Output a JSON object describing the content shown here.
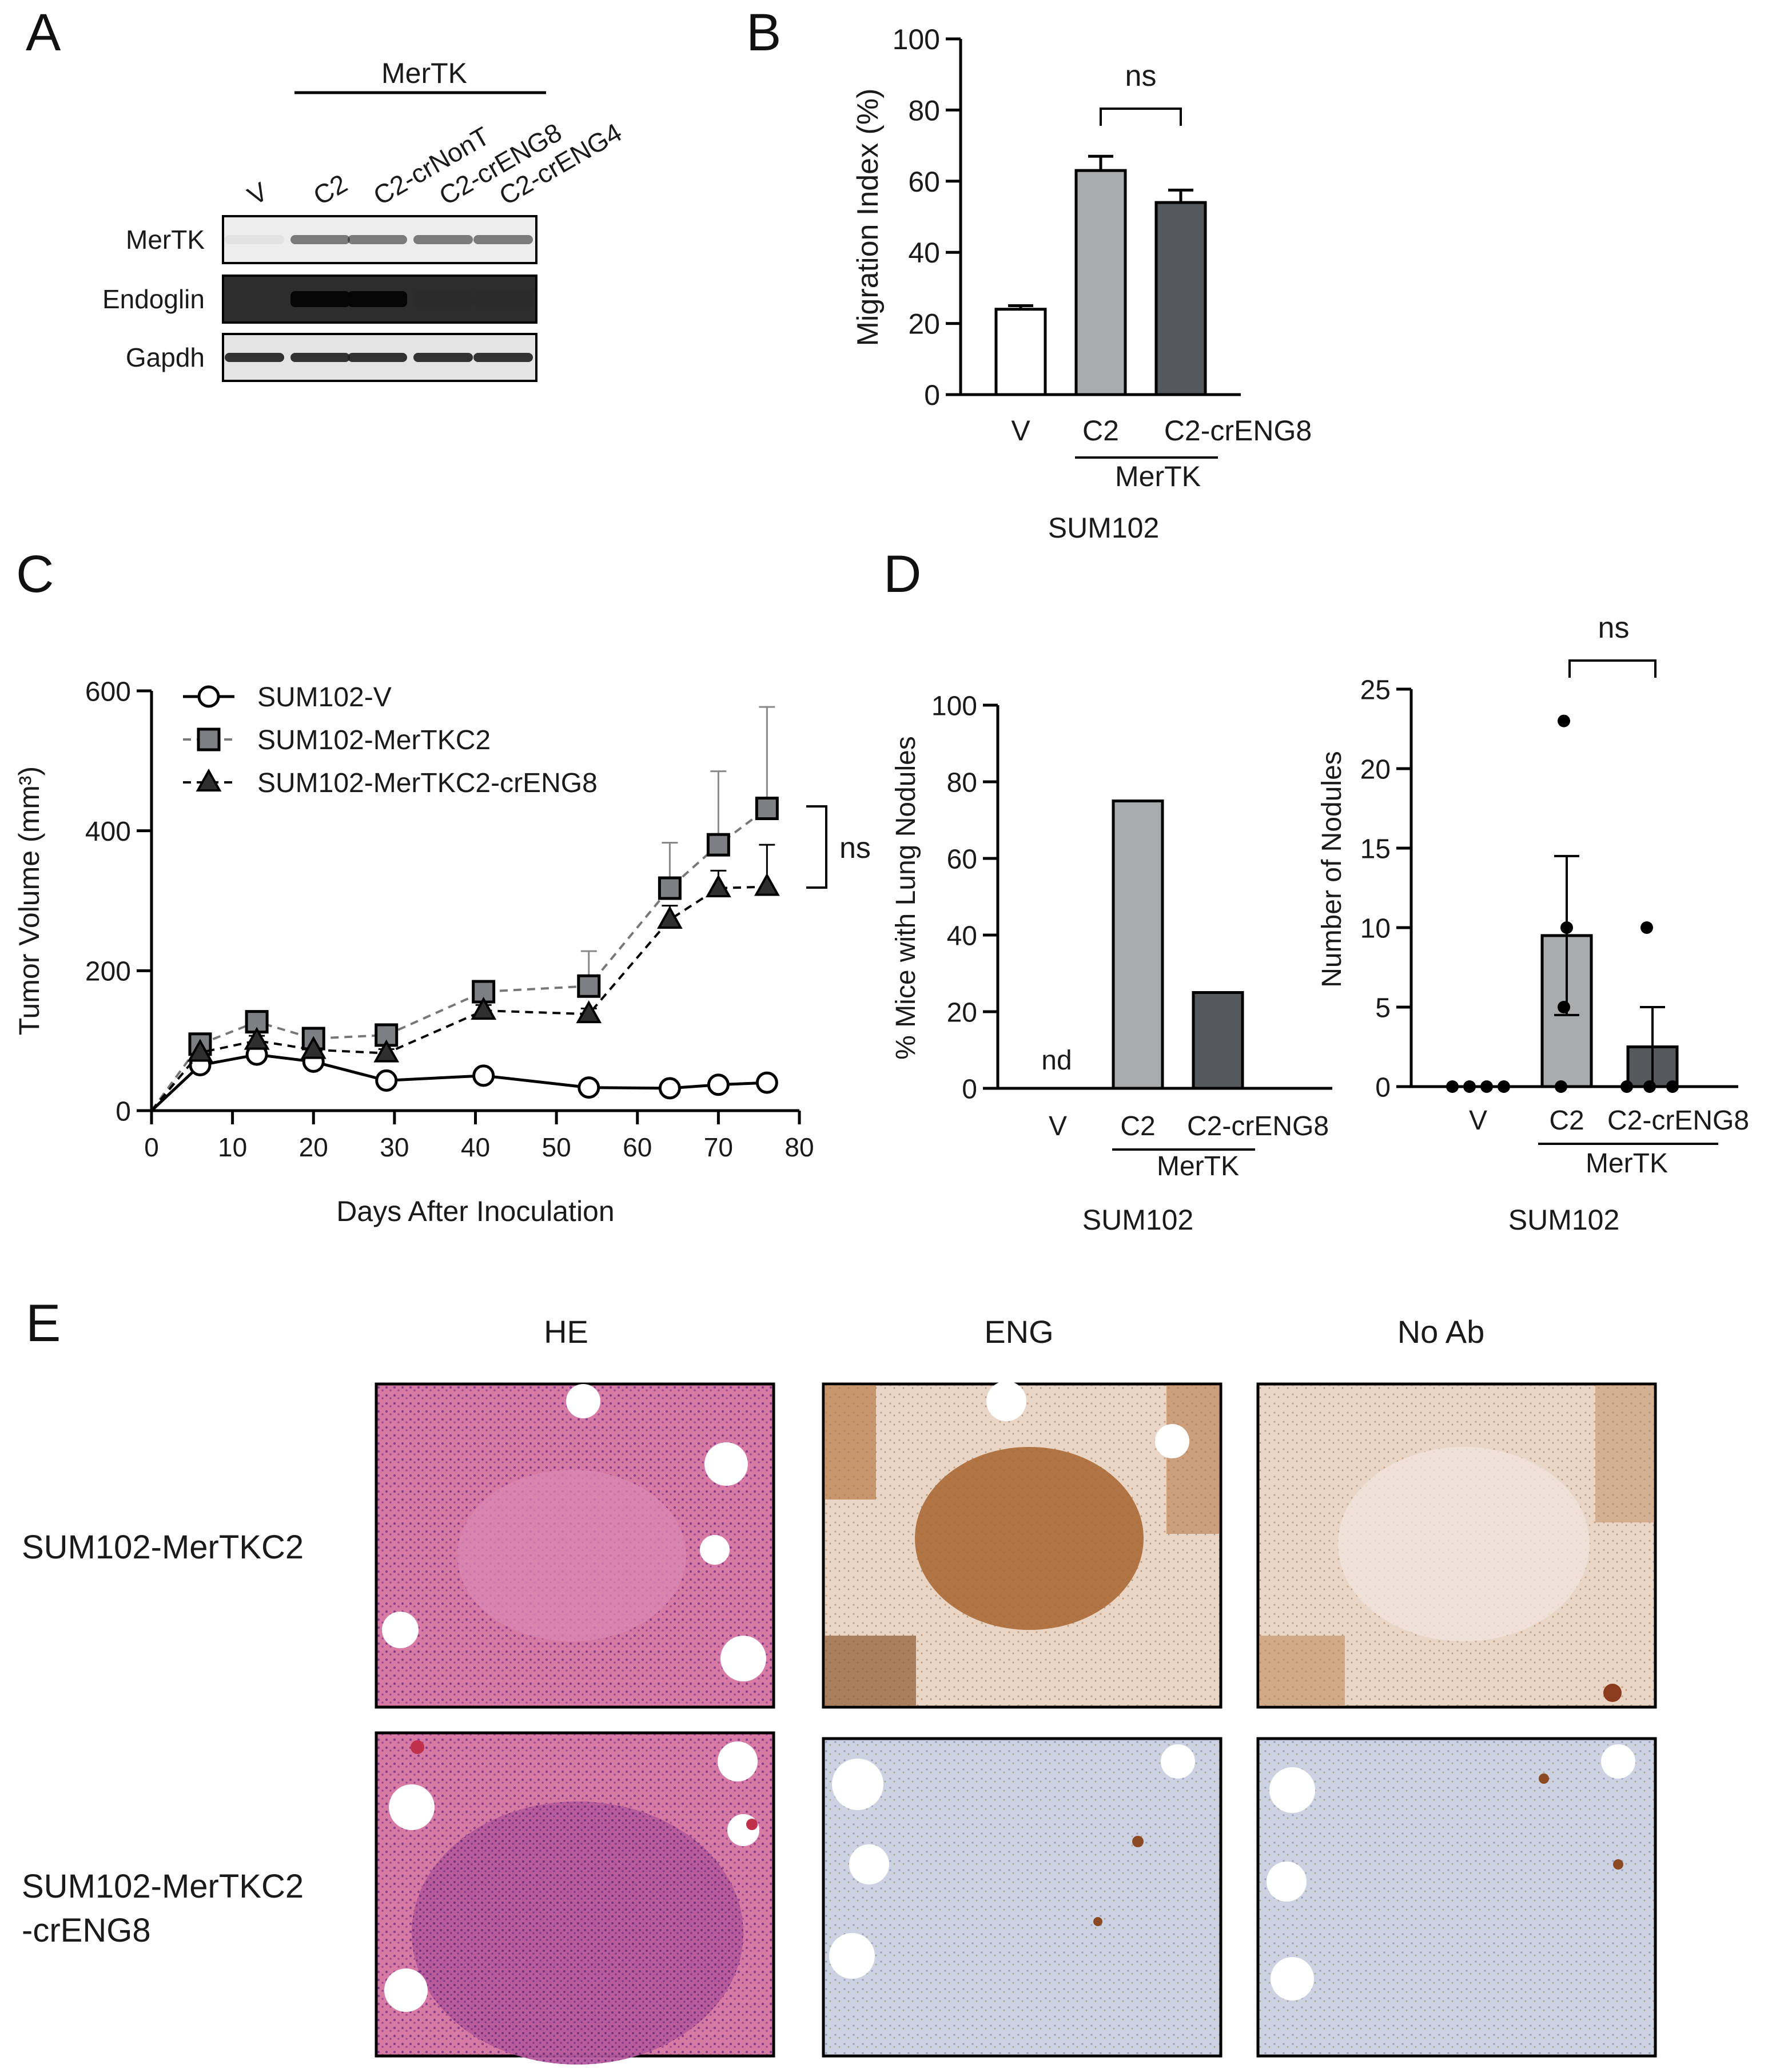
{
  "panel_letters": {
    "a": "A",
    "b": "B",
    "c": "C",
    "d": "D",
    "e": "E"
  },
  "colors": {
    "v": "#ffffff",
    "c2": "#a9abad",
    "crENG8": "#56595c",
    "axis": "#000000"
  },
  "panel_a": {
    "group_label": "MerTK",
    "lanes": [
      "V",
      "C2",
      "C2-crNonT",
      "C2-crENG8",
      "C2-crENG4"
    ],
    "rows": [
      "MerTK",
      "Endoglin",
      "Gapdh"
    ],
    "band_intensity": {
      "MerTK": [
        0.05,
        0.55,
        0.55,
        0.55,
        0.55
      ],
      "Endoglin": [
        0.0,
        1.0,
        1.0,
        0.03,
        0.03
      ],
      "Gapdh": [
        0.9,
        0.9,
        0.9,
        0.9,
        0.9
      ]
    }
  },
  "panel_d": {
    "sum_left": "SUM102",
    "sum_right": "SUM102",
    "mertk_left": "MerTK",
    "mertk_right": "MerTK",
    "nd_label": "nd"
  },
  "panel_e": {
    "columns": [
      "HE",
      "ENG",
      "No Ab"
    ],
    "rows": [
      "SUM102-MerTKC2",
      "SUM102-MerTKC2",
      "-crENG8"
    ]
  },
  "chart_data": [
    {
      "panel": "B",
      "type": "bar",
      "categories": [
        "V",
        "C2",
        "C2-crENG8"
      ],
      "values": [
        24,
        63,
        54
      ],
      "errors": [
        1,
        4,
        3.5
      ],
      "ylabel": "Migration Index (%)",
      "ylim": [
        0,
        100
      ],
      "yticks": [
        0,
        20,
        40,
        60,
        80,
        100
      ],
      "group_label": "MerTK",
      "xlabel": "SUM102",
      "significance": "ns"
    },
    {
      "panel": "C",
      "type": "line",
      "xlabel": "Days After Inoculation",
      "ylabel": "Tumor Volume (mm³)",
      "xlim": [
        0,
        80
      ],
      "ylim": [
        0,
        600
      ],
      "xticks": [
        0,
        10,
        20,
        30,
        40,
        50,
        60,
        70,
        80
      ],
      "yticks": [
        0,
        200,
        400,
        600
      ],
      "legend_position": "top-left",
      "significance": "ns",
      "series": [
        {
          "name": "SUM102-V",
          "marker": "circle",
          "x": [
            0,
            6,
            13,
            20,
            29,
            41,
            54,
            64,
            70,
            76
          ],
          "y": [
            0,
            65,
            80,
            70,
            43,
            50,
            33,
            32,
            37,
            40
          ],
          "err": [
            0,
            5,
            6,
            6,
            4,
            4,
            3,
            3,
            4,
            4
          ]
        },
        {
          "name": "SUM102-MerTKC2",
          "marker": "square",
          "x": [
            0,
            6,
            13,
            20,
            29,
            41,
            54,
            64,
            70,
            76
          ],
          "y": [
            0,
            95,
            127,
            103,
            108,
            170,
            178,
            318,
            380,
            432
          ],
          "err": [
            0,
            8,
            10,
            8,
            8,
            10,
            50,
            65,
            105,
            145
          ]
        },
        {
          "name": "SUM102-MerTKC2-crENG8",
          "marker": "triangle",
          "x": [
            0,
            6,
            13,
            20,
            29,
            41,
            54,
            64,
            70,
            76
          ],
          "y": [
            0,
            83,
            100,
            87,
            82,
            143,
            138,
            273,
            318,
            320
          ],
          "err": [
            0,
            6,
            7,
            6,
            6,
            8,
            8,
            20,
            25,
            60
          ]
        }
      ]
    },
    {
      "panel": "D-left",
      "type": "bar",
      "categories": [
        "V",
        "C2",
        "C2-crENG8"
      ],
      "values": [
        0,
        75,
        25
      ],
      "ylabel": "% Mice with Lung Nodules",
      "ylim": [
        0,
        100
      ],
      "yticks": [
        0,
        20,
        40,
        60,
        80,
        100
      ],
      "annotation": "nd"
    },
    {
      "panel": "D-right",
      "type": "bar",
      "categories": [
        "V",
        "C2",
        "C2-crENG8"
      ],
      "values": [
        0,
        9.5,
        2.5
      ],
      "errors": [
        0,
        5,
        2.5
      ],
      "points": [
        [
          0,
          0,
          0,
          0
        ],
        [
          0,
          5,
          10,
          23
        ],
        [
          0,
          0,
          0,
          10
        ]
      ],
      "ylabel": "Number of Nodules",
      "ylim": [
        0,
        25
      ],
      "yticks": [
        0,
        5,
        10,
        15,
        20,
        25
      ],
      "significance": "ns"
    }
  ]
}
